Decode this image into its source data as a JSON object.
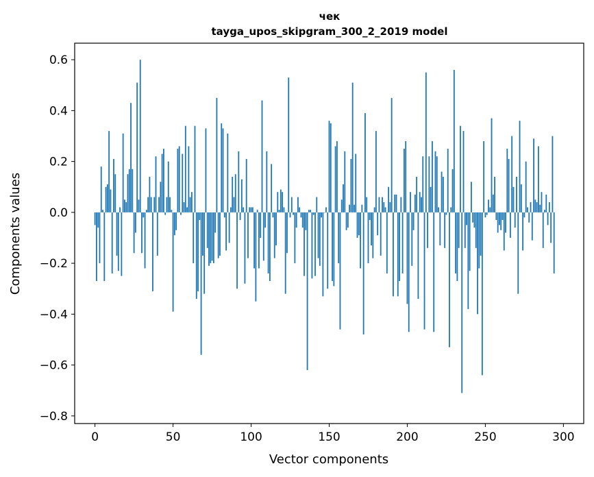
{
  "chart_data": {
    "type": "bar",
    "title": "чек",
    "subtitle": "tayga_upos_skipgram_300_2_2019 model",
    "xlabel": "Vector components",
    "ylabel": "Components values",
    "xlim": [
      -13,
      313
    ],
    "ylim": [
      -0.83,
      0.665
    ],
    "xticks": [
      0,
      50,
      100,
      150,
      200,
      250,
      300
    ],
    "xtick_labels": [
      "0",
      "50",
      "100",
      "150",
      "200",
      "250",
      "300"
    ],
    "yticks": [
      -0.8,
      -0.6,
      -0.4,
      -0.2,
      0.0,
      0.2,
      0.4,
      0.6
    ],
    "ytick_labels": [
      "−0.8",
      "−0.6",
      "−0.4",
      "−0.2",
      "0.0",
      "0.2",
      "0.4",
      "0.6"
    ],
    "grid": false,
    "bar_color": "#1f77b4",
    "x_start": 0,
    "values": [
      -0.05,
      -0.27,
      -0.06,
      -0.2,
      0.18,
      0.01,
      -0.27,
      0.1,
      0.11,
      0.32,
      0.09,
      -0.24,
      0.21,
      0.15,
      -0.17,
      -0.23,
      0.02,
      -0.25,
      0.31,
      0.05,
      0.04,
      0.15,
      0.17,
      0.43,
      0.17,
      -0.16,
      -0.08,
      0.51,
      0.05,
      0.6,
      -0.16,
      -0.02,
      -0.22,
      0.01,
      0.06,
      0.14,
      0.06,
      -0.31,
      0.06,
      0.22,
      -0.17,
      0.06,
      0.12,
      0.23,
      0.25,
      -0.01,
      0.06,
      0.2,
      0.06,
      0.01,
      -0.39,
      -0.09,
      -0.07,
      0.25,
      0.26,
      -0.01,
      0.23,
      0.04,
      0.34,
      0.02,
      0.26,
      0.06,
      0.08,
      -0.2,
      0.34,
      -0.34,
      -0.31,
      -0.03,
      -0.56,
      -0.17,
      -0.32,
      0.33,
      -0.14,
      -0.21,
      -0.2,
      -0.19,
      -0.2,
      -0.08,
      0.45,
      -0.18,
      -0.17,
      0.35,
      0.33,
      -0.02,
      -0.15,
      0.31,
      -0.12,
      0.02,
      0.14,
      0.06,
      0.15,
      -0.3,
      0.24,
      -0.03,
      0.13,
      0.02,
      -0.28,
      0.21,
      -0.18,
      0.02,
      0.02,
      0.02,
      -0.22,
      -0.35,
      0.01,
      -0.22,
      -0.1,
      0.44,
      -0.19,
      -0.06,
      0.24,
      -0.24,
      -0.27,
      0.19,
      -0.02,
      -0.18,
      -0.13,
      0.08,
      0.01,
      0.09,
      0.08,
      0.02,
      -0.32,
      -0.16,
      0.53,
      -0.02,
      0.06,
      -0.01,
      -0.2,
      -0.06,
      0.06,
      0.02,
      -0.02,
      -0.06,
      -0.25,
      -0.07,
      -0.62,
      0.01,
      0.01,
      -0.26,
      -0.01,
      -0.25,
      0.06,
      -0.18,
      -0.21,
      -0.02,
      -0.33,
      0.0,
      0.02,
      -0.3,
      0.36,
      0.35,
      -0.27,
      -0.29,
      0.26,
      0.28,
      -0.2,
      -0.46,
      0.05,
      0.11,
      0.24,
      -0.07,
      -0.06,
      0.03,
      0.21,
      0.51,
      0.03,
      0.23,
      -0.1,
      -0.09,
      -0.22,
      0.03,
      -0.48,
      0.39,
      0.06,
      -0.2,
      -0.03,
      -0.13,
      -0.18,
      0.02,
      0.32,
      -0.09,
      0.06,
      -0.17,
      0.06,
      0.04,
      0.02,
      -0.24,
      0.1,
      0.04,
      0.45,
      -0.33,
      0.07,
      0.07,
      -0.33,
      -0.27,
      0.06,
      -0.24,
      0.25,
      0.28,
      -0.36,
      -0.47,
      0.08,
      -0.21,
      -0.07,
      0.07,
      0.14,
      -0.34,
      0.08,
      0.06,
      0.22,
      -0.46,
      0.55,
      -0.14,
      0.22,
      0.1,
      0.28,
      -0.47,
      0.24,
      0.22,
      0.02,
      -0.13,
      0.16,
      0.14,
      -0.14,
      -0.01,
      0.25,
      -0.53,
      0.02,
      0.17,
      0.56,
      -0.24,
      -0.27,
      -0.14,
      0.34,
      -0.71,
      0.32,
      -0.14,
      -0.05,
      -0.38,
      -0.23,
      0.12,
      -0.04,
      -0.06,
      -0.14,
      -0.4,
      -0.22,
      -0.17,
      -0.64,
      0.28,
      -0.02,
      -0.01,
      0.05,
      0.02,
      0.37,
      0.07,
      0.14,
      -0.03,
      -0.08,
      -0.05,
      -0.07,
      -0.03,
      -0.15,
      -0.08,
      0.25,
      0.21,
      -0.1,
      0.3,
      0.1,
      -0.06,
      0.14,
      -0.32,
      0.36,
      0.11,
      -0.15,
      -0.02,
      0.2,
      0.02,
      -0.04,
      0.04,
      -0.11,
      0.29,
      0.05,
      0.04,
      0.26,
      0.03,
      0.08,
      -0.14,
      0.01,
      0.07,
      -0.05,
      0.04,
      -0.12,
      0.3,
      -0.24
    ]
  }
}
